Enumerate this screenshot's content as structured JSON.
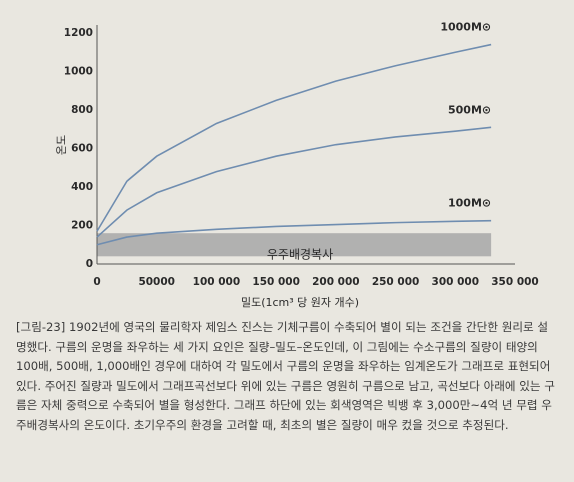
{
  "chart_data": {
    "type": "line",
    "y_label": "온도",
    "x_label": "밀도(1cm³ 당 원자 개수)",
    "x": [
      0,
      25000,
      50000,
      100000,
      150000,
      200000,
      250000,
      300000,
      330000
    ],
    "series": [
      {
        "name": "1000M⊙",
        "color": "#6f8db0",
        "values": [
          170,
          430,
          560,
          730,
          850,
          950,
          1030,
          1100,
          1140
        ]
      },
      {
        "name": "500M⊙",
        "color": "#6f8db0",
        "values": [
          140,
          280,
          370,
          480,
          560,
          620,
          660,
          690,
          710
        ]
      },
      {
        "name": "100M⊙",
        "color": "#6f8db0",
        "values": [
          100,
          140,
          160,
          180,
          195,
          205,
          215,
          222,
          225
        ]
      }
    ],
    "band": {
      "label": "우주배경복사",
      "range": [
        40,
        160
      ],
      "color": "#a7a7a7"
    },
    "xlim": [
      0,
      350000
    ],
    "xticks": [
      0,
      50000,
      {
        "value": 100000,
        "label": "100 000"
      },
      {
        "value": 150000,
        "label": "150 000"
      },
      {
        "value": 200000,
        "label": "200 000"
      },
      {
        "value": 250000,
        "label": "250 000"
      },
      {
        "value": 300000,
        "label": "300 000"
      },
      {
        "value": 350000,
        "label": "350 000"
      }
    ],
    "ylim": [
      0,
      1200
    ],
    "yticks": [
      0,
      200,
      400,
      600,
      800,
      1000,
      1200
    ],
    "caption": "[그림-23] 1902년에 영국의 물리학자 제임스 진스는 기체구름이 수축되어 별이 되는 조건을 간단한 원리로 설명했다. 구름의 운명을 좌우하는 세 가지 요인은 질량–밀도–온도인데, 이 그림에는 수소구름의 질량이 태양의 100배, 500배, 1,000배인 경우에 대하여 각 밀도에서 구름의 운명을 좌우하는 임계온도가 그래프로 표현되어 있다. 주어진 질량과 밀도에서 그래프곡선보다 위에 있는 구름은 영원히 구름으로 남고, 곡선보다 아래에 있는 구름은 자체 중력으로 수축되어 별을 형성한다. 그래프 하단에 있는 회색영역은 빅뱅 후 3,000만~4억 년 무렵 우주배경복사의 온도이다. 초기우주의 환경을 고려할 때, 최초의 별은 질량이 매우 컸을 것으로 추정된다."
  }
}
